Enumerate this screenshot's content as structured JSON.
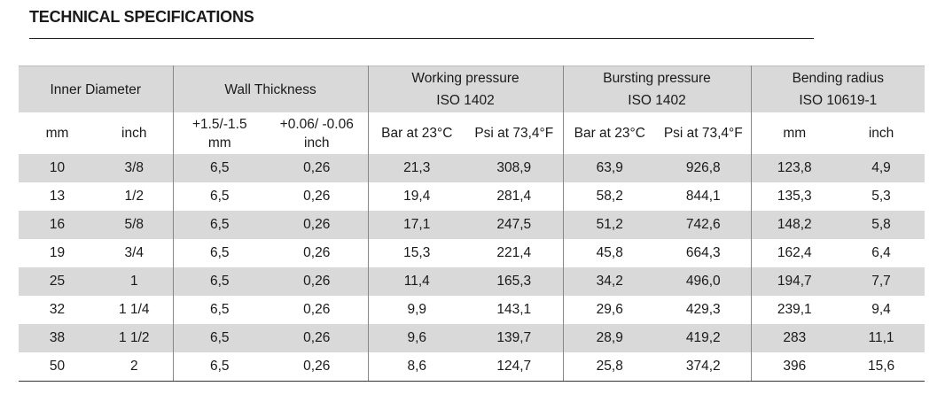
{
  "title": "TECHNICAL SPECIFICATIONS",
  "groups": {
    "inner_diameter": "Inner Diameter",
    "wall_thickness": "Wall Thickness",
    "working_pressure": "Working pressure",
    "working_pressure_std": "ISO 1402",
    "bursting_pressure": "Bursting pressure",
    "bursting_pressure_std": "ISO 1402",
    "bending_radius": "Bending radius",
    "bending_radius_std": "ISO 10619-1"
  },
  "units": {
    "id_mm": "mm",
    "id_inch": "inch",
    "wt_mm_line1": "+1.5/-1.5",
    "wt_mm_line2": "mm",
    "wt_inch_line1": "+0.06/ -0.06",
    "wt_inch_line2": "inch",
    "wp_bar": "Bar at 23°C",
    "wp_psi": "Psi at 73,4°F",
    "bp_bar": "Bar at 23°C",
    "bp_psi": "Psi at 73,4°F",
    "br_mm": "mm",
    "br_inch": "inch"
  },
  "rows": [
    [
      "10",
      "3/8",
      "6,5",
      "0,26",
      "21,3",
      "308,9",
      "63,9",
      "926,8",
      "123,8",
      "4,9"
    ],
    [
      "13",
      "1/2",
      "6,5",
      "0,26",
      "19,4",
      "281,4",
      "58,2",
      "844,1",
      "135,3",
      "5,3"
    ],
    [
      "16",
      "5/8",
      "6,5",
      "0,26",
      "17,1",
      "247,5",
      "51,2",
      "742,6",
      "148,2",
      "5,8"
    ],
    [
      "19",
      "3/4",
      "6,5",
      "0,26",
      "15,3",
      "221,4",
      "45,8",
      "664,3",
      "162,4",
      "6,4"
    ],
    [
      "25",
      "1",
      "6,5",
      "0,26",
      "11,4",
      "165,3",
      "34,2",
      "496,0",
      "194,7",
      "7,7"
    ],
    [
      "32",
      "1 1/4",
      "6,5",
      "0,26",
      "9,9",
      "143,1",
      "29,6",
      "429,3",
      "239,1",
      "9,4"
    ],
    [
      "38",
      "1 1/2",
      "6,5",
      "0,26",
      "9,6",
      "139,7",
      "28,9",
      "419,2",
      "283",
      "11,1"
    ],
    [
      "50",
      "2",
      "6,5",
      "0,26",
      "8,6",
      "124,7",
      "25,8",
      "374,2",
      "396",
      "15,6"
    ]
  ]
}
